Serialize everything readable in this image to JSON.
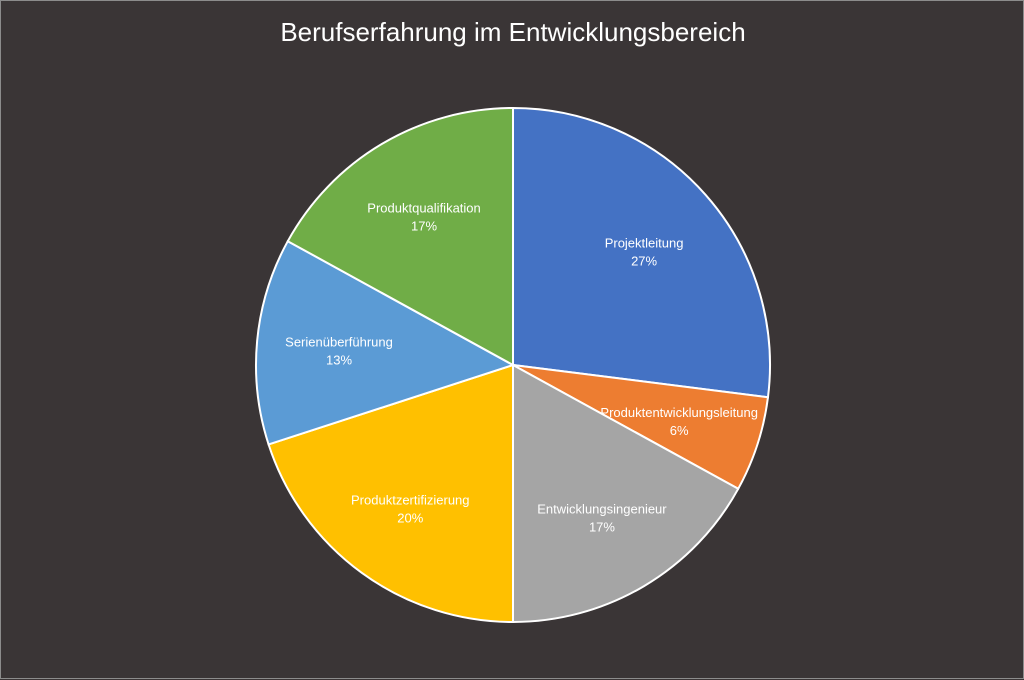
{
  "chart_data": {
    "type": "pie",
    "title": "Berufserfahrung im Entwicklungsbereich",
    "slices": [
      {
        "label": "Projektleitung",
        "value": 27,
        "value_label": "27%",
        "color": "#4472c4"
      },
      {
        "label": "Produktentwicklungsleitung",
        "value": 6,
        "value_label": "6%",
        "color": "#ed7d31"
      },
      {
        "label": "Entwicklungsingenieur",
        "value": 17,
        "value_label": "17%",
        "color": "#a5a5a5"
      },
      {
        "label": "Produktzertifizierung",
        "value": 20,
        "value_label": "20%",
        "color": "#ffc000"
      },
      {
        "label": "Serienüberführung",
        "value": 13,
        "value_label": "13%",
        "color": "#5b9bd5"
      },
      {
        "label": "Produktqualifikation",
        "value": 17,
        "value_label": "17%",
        "color": "#70ad47"
      }
    ],
    "start_angle": "12 o'clock",
    "direction": "clockwise",
    "legend": "none",
    "data_labels": "inside"
  },
  "colors": {
    "background": "#3a3536",
    "slice_border": "#ffffff",
    "text": "#ffffff"
  }
}
